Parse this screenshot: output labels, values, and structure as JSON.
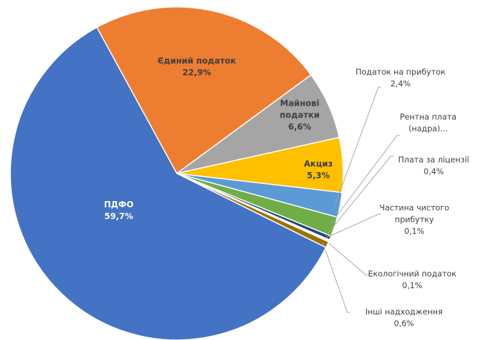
{
  "chart_data": {
    "type": "pie",
    "categories": [
      "Єдиний податок",
      "Майнові податки",
      "Акциз",
      "Податок на прибуток",
      "Рентна плата (надра)...",
      "Плата за ліцензії",
      "Частина чистого прибутку",
      "Екологічний податок",
      "Інші надходження",
      "ПДФО"
    ],
    "values": [
      22.9,
      6.6,
      5.3,
      2.4,
      1.9,
      0.4,
      0.1,
      0.1,
      0.6,
      59.7
    ],
    "value_labels": [
      "22,9%",
      "6,6%",
      "5,3%",
      "2,4%",
      null,
      "0,4%",
      "0,1%",
      "0,1%",
      "0,6%",
      "59,7%"
    ],
    "colors": [
      "#ed7d31",
      "#a5a5a5",
      "#ffc000",
      "#5b9bd5",
      "#70ad47",
      "#264478",
      "#9e480e",
      "#636363",
      "#997300",
      "#4472c4"
    ]
  }
}
